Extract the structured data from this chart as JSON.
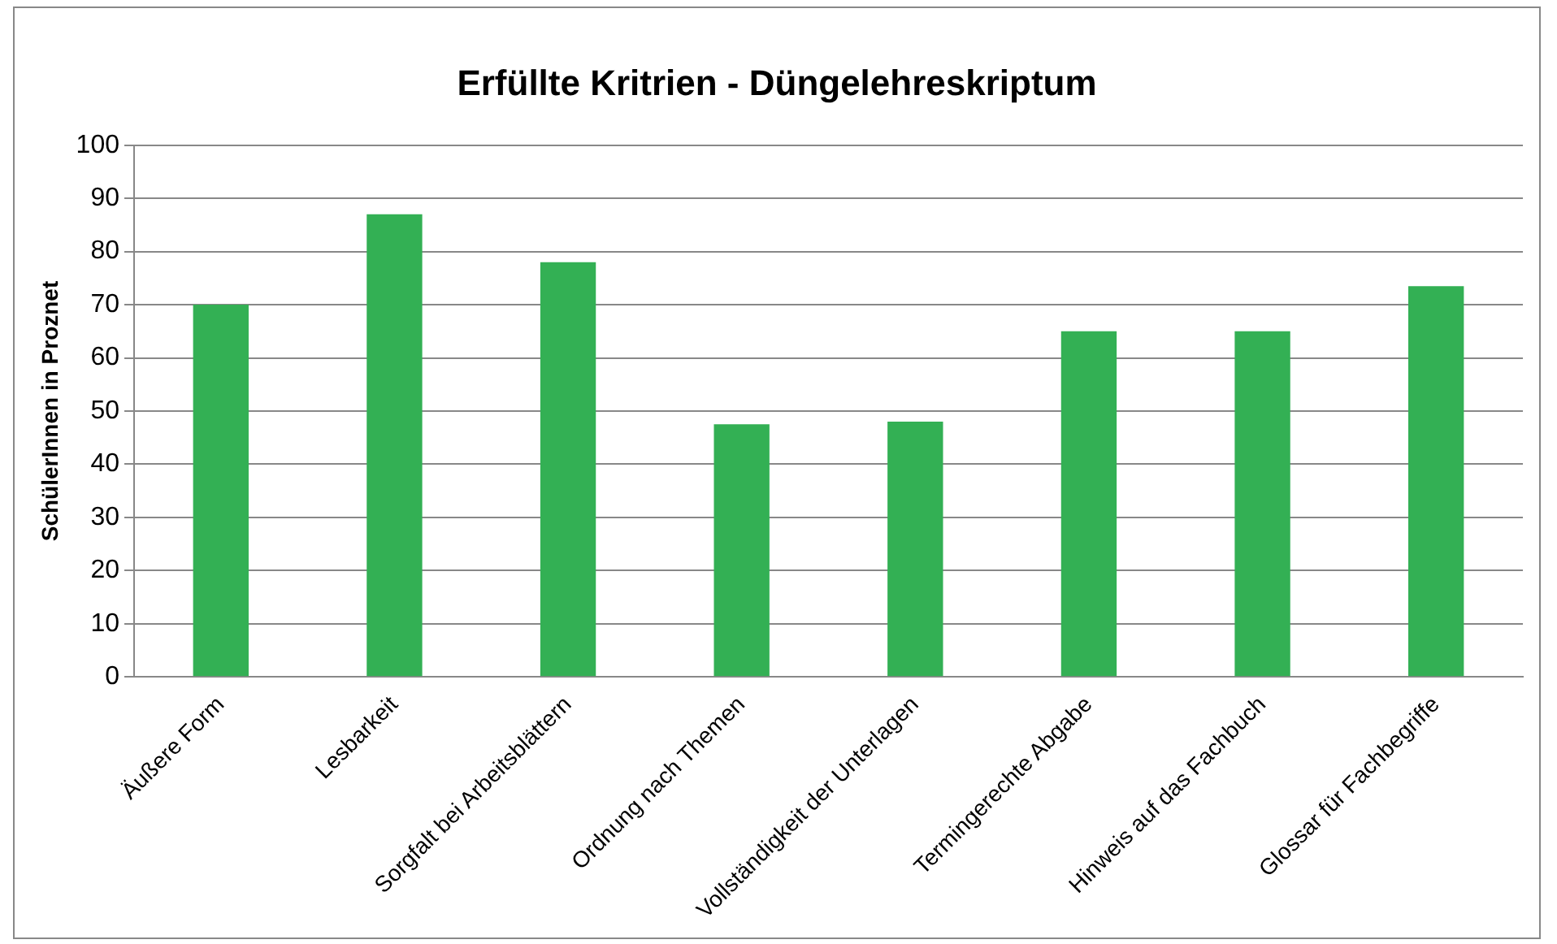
{
  "chart_data": {
    "type": "bar",
    "title": "Erfüllte Kritrien - Düngelehreskriptum",
    "ylabel": "SchülerInnen in Proznet",
    "categories": [
      "Äußere Form",
      "Lesbarkeit",
      "Sorgfalt bei Arbeitsblättern",
      "Ordnung nach Themen",
      "Vollständigkeit der Unterlagen",
      "Termingerechte Abgabe",
      "Hinweis auf das Fachbuch",
      "Glossar für Fachbegriffe"
    ],
    "values": [
      70,
      87,
      78,
      47.5,
      48,
      65,
      65,
      73.5
    ],
    "color": "#33b054",
    "ylim": [
      0,
      100
    ],
    "yticks": [
      0,
      10,
      20,
      30,
      40,
      50,
      60,
      70,
      80,
      90,
      100
    ],
    "grid": "y",
    "legend": false
  }
}
